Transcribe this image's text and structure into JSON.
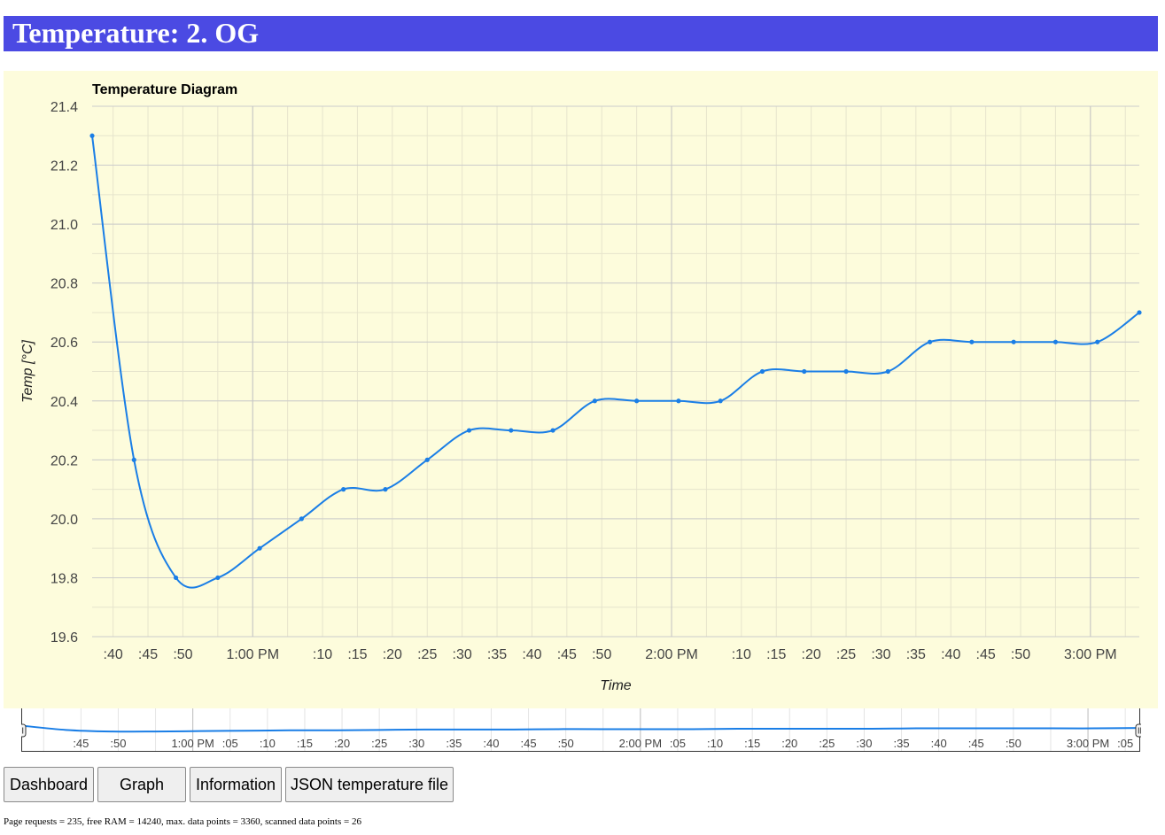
{
  "page": {
    "title": "Temperature: 2. OG"
  },
  "chart_data": {
    "type": "line",
    "title": "Temperature Diagram",
    "xlabel": "Time",
    "ylabel": "Temp [°C]",
    "ylim": [
      19.6,
      21.4
    ],
    "yticks": [
      "19.6",
      "19.8",
      "20.0",
      "20.2",
      "20.4",
      "20.6",
      "20.8",
      "21.0",
      "21.2",
      "21.4"
    ],
    "x_start": "12:37 PM",
    "x_end": "3:11 PM",
    "grid": true,
    "color": "#1a7ee6",
    "points": [
      {
        "t": "12:37",
        "y": 21.3
      },
      {
        "t": "12:43",
        "y": 20.2
      },
      {
        "t": "12:49",
        "y": 19.8
      },
      {
        "t": "12:55",
        "y": 19.8
      },
      {
        "t": "13:01",
        "y": 19.9
      },
      {
        "t": "13:07",
        "y": 20.0
      },
      {
        "t": "13:13",
        "y": 20.1
      },
      {
        "t": "13:19",
        "y": 20.1
      },
      {
        "t": "13:25",
        "y": 20.2
      },
      {
        "t": "13:31",
        "y": 20.3
      },
      {
        "t": "13:37",
        "y": 20.3
      },
      {
        "t": "13:43",
        "y": 20.3
      },
      {
        "t": "13:49",
        "y": 20.4
      },
      {
        "t": "13:55",
        "y": 20.4
      },
      {
        "t": "14:01",
        "y": 20.4
      },
      {
        "t": "14:07",
        "y": 20.4
      },
      {
        "t": "14:13",
        "y": 20.5
      },
      {
        "t": "14:19",
        "y": 20.5
      },
      {
        "t": "14:25",
        "y": 20.5
      },
      {
        "t": "14:31",
        "y": 20.5
      },
      {
        "t": "14:37",
        "y": 20.6
      },
      {
        "t": "14:43",
        "y": 20.6
      },
      {
        "t": "14:49",
        "y": 20.6
      },
      {
        "t": "14:55",
        "y": 20.6
      },
      {
        "t": "15:01",
        "y": 20.6
      },
      {
        "t": "15:07",
        "y": 20.7
      }
    ],
    "x_ticks": [
      {
        "t": "12:40",
        "label": ":40"
      },
      {
        "t": "12:45",
        "label": ":45"
      },
      {
        "t": "12:50",
        "label": ":50"
      },
      {
        "t": "13:00",
        "label": "1:00 PM"
      },
      {
        "t": "13:10",
        "label": ":10"
      },
      {
        "t": "13:15",
        "label": ":15"
      },
      {
        "t": "13:20",
        "label": ":20"
      },
      {
        "t": "13:25",
        "label": ":25"
      },
      {
        "t": "13:30",
        "label": ":30"
      },
      {
        "t": "13:35",
        "label": ":35"
      },
      {
        "t": "13:40",
        "label": ":40"
      },
      {
        "t": "13:45",
        "label": ":45"
      },
      {
        "t": "13:50",
        "label": ":50"
      },
      {
        "t": "14:00",
        "label": "2:00 PM"
      },
      {
        "t": "14:10",
        "label": ":10"
      },
      {
        "t": "14:15",
        "label": ":15"
      },
      {
        "t": "14:20",
        "label": ":20"
      },
      {
        "t": "14:25",
        "label": ":25"
      },
      {
        "t": "14:30",
        "label": ":30"
      },
      {
        "t": "14:35",
        "label": ":35"
      },
      {
        "t": "14:40",
        "label": ":40"
      },
      {
        "t": "14:45",
        "label": ":45"
      },
      {
        "t": "14:50",
        "label": ":50"
      },
      {
        "t": "15:00",
        "label": "3:00 PM"
      }
    ],
    "range_ticks": [
      {
        "t": "12:45",
        "label": ":45"
      },
      {
        "t": "12:50",
        "label": ":50"
      },
      {
        "t": "13:00",
        "label": "1:00 PM"
      },
      {
        "t": "13:05",
        "label": ":05"
      },
      {
        "t": "13:10",
        "label": ":10"
      },
      {
        "t": "13:15",
        "label": ":15"
      },
      {
        "t": "13:20",
        "label": ":20"
      },
      {
        "t": "13:25",
        "label": ":25"
      },
      {
        "t": "13:30",
        "label": ":30"
      },
      {
        "t": "13:35",
        "label": ":35"
      },
      {
        "t": "13:40",
        "label": ":40"
      },
      {
        "t": "13:45",
        "label": ":45"
      },
      {
        "t": "13:50",
        "label": ":50"
      },
      {
        "t": "14:00",
        "label": "2:00 PM"
      },
      {
        "t": "14:05",
        "label": ":05"
      },
      {
        "t": "14:10",
        "label": ":10"
      },
      {
        "t": "14:15",
        "label": ":15"
      },
      {
        "t": "14:20",
        "label": ":20"
      },
      {
        "t": "14:25",
        "label": ":25"
      },
      {
        "t": "14:30",
        "label": ":30"
      },
      {
        "t": "14:35",
        "label": ":35"
      },
      {
        "t": "14:40",
        "label": ":40"
      },
      {
        "t": "14:45",
        "label": ":45"
      },
      {
        "t": "14:50",
        "label": ":50"
      },
      {
        "t": "15:00",
        "label": "3:00 PM"
      },
      {
        "t": "15:05",
        "label": ":05"
      }
    ]
  },
  "nav": {
    "dashboard": "Dashboard",
    "graph": "Graph",
    "information": "Information",
    "json": "JSON temperature file"
  },
  "footer": {
    "text": "Page requests = 235, free RAM = 14240, max. data points = 3360, scanned data points = 26"
  }
}
